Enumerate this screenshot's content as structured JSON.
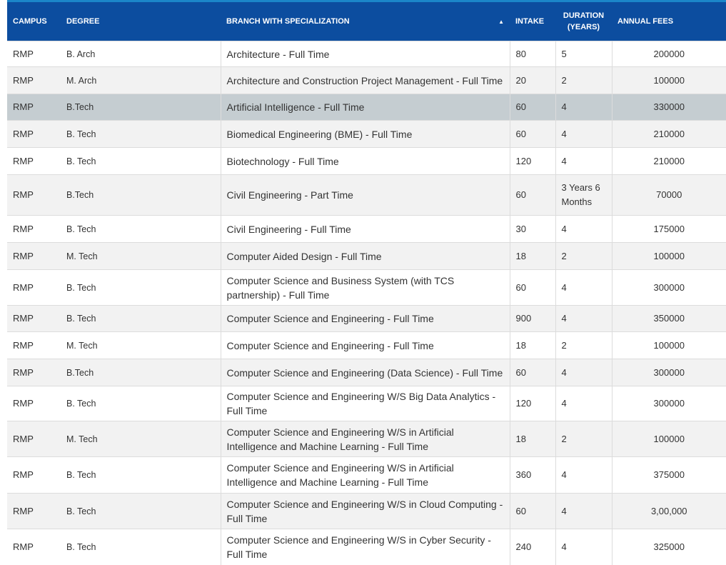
{
  "table": {
    "header": [
      "CAMPUS",
      "DEGREE",
      "BRANCH WITH SPECIALIZATION",
      "INTAKE",
      "DURATION (YEARS)",
      "ANNUAL FEES"
    ],
    "rows": [
      [
        "RMP",
        "B. Arch",
        "Architecture - Full Time",
        80,
        5,
        200000
      ],
      [
        "RMP",
        "M. Arch",
        "Architecture and Construction Project Management - Full Time",
        20,
        2,
        100000
      ],
      [
        "RMP",
        "B.Tech",
        "Artificial Intelligence - Full Time",
        60,
        4,
        330000
      ],
      [
        "RMP",
        "B. Tech",
        "Biomedical Engineering (BME) - Full Time",
        60,
        4,
        210000
      ],
      [
        "RMP",
        "B. Tech",
        "Biotechnology - Full Time",
        120,
        4,
        210000
      ],
      [
        "RMP",
        "B.Tech",
        "Civil Engineering - Part Time",
        60,
        "3 Years 6 Months",
        70000
      ],
      [
        "RMP",
        "B. Tech",
        "Civil Engineering - Full Time",
        30,
        4,
        175000
      ],
      [
        "RMP",
        "M. Tech",
        "Computer Aided Design - Full Time",
        18,
        2,
        100000
      ],
      [
        "RMP",
        "B. Tech",
        "Computer Science and Business System (with TCS partnership) - Full Time",
        60,
        4,
        300000
      ],
      [
        "RMP",
        "B. Tech",
        "Computer Science and Engineering - Full Time",
        900,
        4,
        350000
      ],
      [
        "RMP",
        "M. Tech",
        "Computer Science and Engineering - Full Time",
        18,
        2,
        100000
      ],
      [
        "RMP",
        "B.Tech",
        "Computer Science and Engineering (Data Science) - Full Time",
        60,
        4,
        300000
      ],
      [
        "RMP",
        "B. Tech",
        "Computer Science and Engineering W/S Big Data Analytics - Full Time",
        120,
        4,
        300000
      ],
      [
        "RMP",
        "M. Tech",
        "Computer Science and Engineering W/S in Artificial Intelligence and Machine Learning - Full Time",
        18,
        2,
        100000
      ],
      [
        "RMP",
        "B. Tech",
        "Computer Science and Engineering W/S in Artificial Intelligence and Machine Learning - Full Time",
        360,
        4,
        375000
      ],
      [
        "RMP",
        "B. Tech",
        "Computer Science and Engineering W/S in Cloud Computing - Full Time",
        60,
        4,
        "3,00,000"
      ],
      [
        "RMP",
        "B. Tech",
        "Computer Science and Engineering W/S in Cyber Security - Full Time",
        240,
        4,
        325000
      ]
    ]
  }
}
